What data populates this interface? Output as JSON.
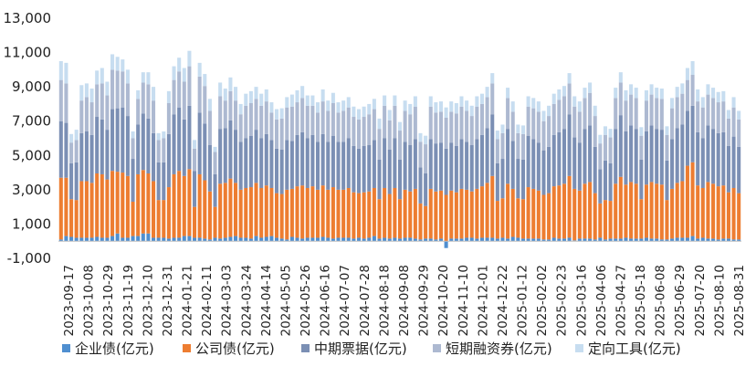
{
  "chart_data": {
    "type": "bar",
    "stacked": true,
    "title": "",
    "xlabel": "",
    "ylabel": "",
    "ylim": [
      -1000,
      13000
    ],
    "yticks": [
      "-1,000",
      "1,000",
      "3,000",
      "5,000",
      "7,000",
      "9,000",
      "11,000",
      "13,000"
    ],
    "ytick_values": [
      -1000,
      1000,
      3000,
      5000,
      7000,
      9000,
      11000,
      13000
    ],
    "grid": false,
    "legend_position": "bottom",
    "x_tick_labels": [
      "2023-09-17",
      "2023-10-08",
      "2023-10-29",
      "2023-11-19",
      "2023-12-10",
      "2023-12-31",
      "2024-01-21",
      "2024-02-11",
      "2024-03-03",
      "2024-03-24",
      "2024-04-14",
      "2024-05-05",
      "2024-05-26",
      "2024-06-16",
      "2024-07-07",
      "2024-07-28",
      "2024-08-18",
      "2024-09-08",
      "2024-09-29",
      "2024-10-20",
      "2024-11-10",
      "2024-12-01",
      "2024-12-22",
      "2025-01-12",
      "2025-02-02",
      "2025-02-23",
      "2025-03-16",
      "2025-04-06",
      "2025-04-27",
      "2025-05-18",
      "2025-06-08",
      "2025-06-29",
      "2025-07-20",
      "2025-08-10",
      "2025-08-31"
    ],
    "series": [
      {
        "name": "企业债(亿元)",
        "color": "#4f8fd0",
        "values": [
          100,
          300,
          250,
          200,
          200,
          200,
          200,
          250,
          200,
          200,
          300,
          450,
          200,
          200,
          300,
          300,
          450,
          450,
          200,
          200,
          200,
          150,
          200,
          200,
          300,
          300,
          200,
          200,
          150,
          100,
          200,
          150,
          200,
          250,
          300,
          200,
          200,
          150,
          300,
          200,
          250,
          300,
          200,
          150,
          100,
          250,
          200,
          150,
          200,
          200,
          200,
          250,
          200,
          150,
          200,
          200,
          200,
          150,
          200,
          150,
          200,
          300,
          150,
          200,
          150,
          200,
          150,
          200,
          200,
          150,
          100,
          150,
          150,
          100,
          150,
          -400,
          150,
          150,
          150,
          200,
          200,
          150,
          200,
          200,
          200,
          150,
          200,
          150,
          250,
          200,
          150,
          150,
          150,
          150,
          100,
          100,
          200,
          150,
          150,
          200,
          50,
          150,
          150,
          150,
          100,
          200,
          100,
          150,
          150,
          150,
          200,
          150,
          150,
          150,
          200,
          150,
          150,
          100,
          100,
          150,
          200,
          200,
          200,
          300,
          150,
          200,
          150,
          150,
          100,
          150,
          150,
          100,
          100
        ]
      },
      {
        "name": "公司债(亿元)",
        "color": "#ed7d31",
        "values": [
          3600,
          3400,
          2200,
          2200,
          3300,
          3300,
          3200,
          3700,
          3700,
          3400,
          3800,
          3600,
          3800,
          3600,
          2000,
          3600,
          3700,
          3500,
          3300,
          2200,
          2200,
          3000,
          3700,
          3900,
          3500,
          3900,
          1800,
          3700,
          3400,
          2800,
          1800,
          3200,
          3200,
          3400,
          3100,
          2800,
          2900,
          3000,
          3100,
          2900,
          3000,
          2800,
          2600,
          2600,
          2900,
          2800,
          3000,
          3100,
          2900,
          3000,
          2800,
          3000,
          2800,
          3000,
          2800,
          2800,
          2900,
          2700,
          2600,
          2700,
          2700,
          2800,
          2300,
          2900,
          2600,
          2900,
          2300,
          2800,
          2700,
          2900,
          2100,
          1900,
          2900,
          2800,
          2800,
          2700,
          2800,
          2700,
          2900,
          2800,
          2700,
          2900,
          3000,
          3200,
          3600,
          2200,
          2300,
          3200,
          2800,
          2300,
          2300,
          3000,
          2900,
          2800,
          2600,
          2700,
          3000,
          3100,
          3200,
          3600,
          3000,
          2800,
          3200,
          3300,
          2700,
          2000,
          2300,
          2200,
          3200,
          3600,
          3100,
          3300,
          3200,
          2300,
          3100,
          3300,
          3200,
          3200,
          2300,
          2900,
          3200,
          3300,
          4200,
          4300,
          3100,
          2900,
          3300,
          3200,
          3100,
          3100,
          2700,
          3000,
          2700
        ]
      },
      {
        "name": "中期票据(亿元)",
        "color": "#7b8fb4",
        "values": [
          3300,
          3200,
          2100,
          2200,
          2800,
          2900,
          2800,
          3300,
          3200,
          2900,
          3600,
          3700,
          3800,
          3500,
          2500,
          2900,
          3300,
          3200,
          2800,
          2200,
          2200,
          3100,
          3500,
          3700,
          3300,
          3700,
          2100,
          3600,
          3300,
          2700,
          1900,
          3200,
          3200,
          3400,
          3100,
          2800,
          2900,
          3000,
          3100,
          2900,
          3000,
          2800,
          2600,
          2600,
          2900,
          2800,
          3000,
          3100,
          2900,
          3000,
          2800,
          3000,
          2800,
          3000,
          2800,
          2800,
          2900,
          2700,
          2600,
          2700,
          2700,
          2800,
          2300,
          2900,
          2600,
          2900,
          2300,
          2800,
          2700,
          2900,
          2100,
          1900,
          2900,
          2800,
          2800,
          2700,
          2800,
          2700,
          2900,
          2800,
          2700,
          2900,
          3000,
          3200,
          3600,
          2200,
          2300,
          3200,
          2800,
          2300,
          2300,
          3000,
          2900,
          2800,
          2600,
          2700,
          3000,
          3100,
          3200,
          3600,
          3000,
          2800,
          3200,
          3300,
          2700,
          2000,
          2300,
          2200,
          3200,
          3600,
          3100,
          3300,
          3200,
          2300,
          3100,
          3300,
          3200,
          3200,
          2300,
          2900,
          3200,
          3300,
          3200,
          3300,
          3100,
          2900,
          3300,
          3200,
          3100,
          3100,
          2700,
          3000,
          2700
        ]
      },
      {
        "name": "短期融资券(亿元)",
        "color": "#adb9d1",
        "values": [
          2400,
          2300,
          1200,
          1300,
          1900,
          2000,
          1900,
          1900,
          2100,
          2000,
          2300,
          2200,
          2100,
          1900,
          1200,
          1500,
          1800,
          2000,
          1900,
          1300,
          1400,
          1800,
          2000,
          2100,
          2200,
          2300,
          1300,
          2100,
          2200,
          2000,
          1300,
          1900,
          1600,
          1700,
          1700,
          1600,
          1900,
          1900,
          1800,
          1900,
          1900,
          1600,
          1700,
          1800,
          1900,
          2000,
          1900,
          2000,
          1900,
          1700,
          1700,
          1900,
          1800,
          1900,
          1700,
          1800,
          1800,
          1700,
          1700,
          1700,
          1800,
          1800,
          1800,
          1900,
          1700,
          1900,
          1700,
          1800,
          1800,
          1900,
          1500,
          1700,
          1900,
          1800,
          1800,
          1800,
          1800,
          1900,
          1900,
          1800,
          1700,
          1900,
          1800,
          1800,
          1800,
          1400,
          1500,
          1800,
          1700,
          1500,
          1500,
          1700,
          1800,
          1800,
          1700,
          1800,
          1800,
          1900,
          1900,
          1800,
          1800,
          1800,
          1800,
          1900,
          1800,
          1500,
          1500,
          1500,
          1800,
          1900,
          1800,
          1800,
          1800,
          1400,
          1800,
          1800,
          1800,
          1800,
          1500,
          1800,
          1800,
          1800,
          1800,
          1800,
          1800,
          1800,
          1800,
          1800,
          1800,
          1800,
          1600,
          1700,
          1600
        ]
      },
      {
        "name": "定向工具(亿元)",
        "color": "#c7ddf0",
        "values": [
          1100,
          1200,
          500,
          600,
          900,
          800,
          800,
          800,
          900,
          800,
          900,
          800,
          700,
          800,
          400,
          500,
          600,
          700,
          800,
          400,
          400,
          700,
          800,
          800,
          800,
          900,
          500,
          800,
          700,
          700,
          300,
          800,
          700,
          800,
          800,
          600,
          700,
          700,
          700,
          700,
          700,
          600,
          600,
          600,
          600,
          700,
          700,
          700,
          600,
          600,
          600,
          700,
          600,
          600,
          600,
          600,
          600,
          600,
          600,
          600,
          600,
          600,
          600,
          600,
          600,
          600,
          500,
          600,
          600,
          600,
          500,
          500,
          600,
          600,
          600,
          600,
          600,
          600,
          600,
          600,
          600,
          600,
          600,
          600,
          600,
          500,
          500,
          600,
          600,
          500,
          500,
          600,
          600,
          600,
          600,
          600,
          600,
          600,
          600,
          600,
          600,
          600,
          600,
          600,
          600,
          500,
          500,
          500,
          600,
          600,
          600,
          600,
          600,
          500,
          600,
          600,
          600,
          600,
          500,
          600,
          600,
          600,
          700,
          800,
          700,
          600,
          600,
          600,
          600,
          600,
          500,
          600,
          500
        ]
      }
    ]
  }
}
